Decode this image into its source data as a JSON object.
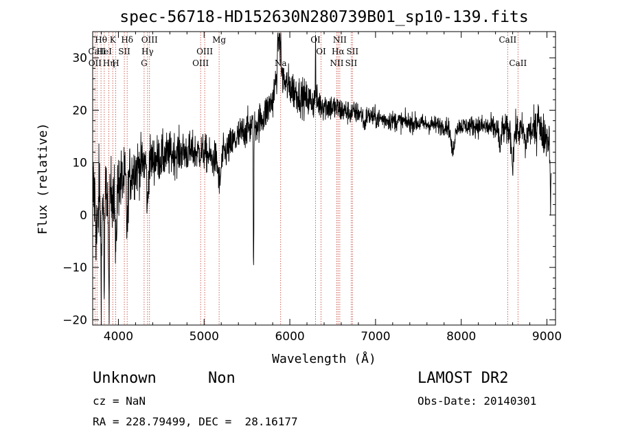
{
  "chart_data": {
    "type": "line",
    "title": "spec-56718-HD152630N280739B01_sp10-139.fits",
    "xlabel": "Wavelength (Å)",
    "ylabel": "Flux (relative)",
    "xlim": [
      3700,
      9100
    ],
    "ylim": [
      -21,
      35
    ],
    "x_ticks": [
      4000,
      5000,
      6000,
      7000,
      8000,
      9000
    ],
    "y_ticks": [
      -20,
      -10,
      0,
      10,
      20,
      30
    ],
    "x_tick_labels": [
      "4000",
      "5000",
      "6000",
      "7000",
      "8000",
      "9000"
    ],
    "y_tick_labels": [
      "−20",
      "−10",
      "0",
      "10",
      "20",
      "30"
    ],
    "grid": false,
    "series": [
      {
        "color": "#000000",
        "continuum": [
          [
            3700,
            4
          ],
          [
            3800,
            6
          ],
          [
            3900,
            4
          ],
          [
            4000,
            6
          ],
          [
            4100,
            7
          ],
          [
            4200,
            9
          ],
          [
            4300,
            10
          ],
          [
            4400,
            10.5
          ],
          [
            4500,
            11
          ],
          [
            4600,
            11.5
          ],
          [
            4700,
            12
          ],
          [
            4800,
            12
          ],
          [
            4900,
            12
          ],
          [
            5000,
            12
          ],
          [
            5100,
            10.5
          ],
          [
            5200,
            11
          ],
          [
            5300,
            13
          ],
          [
            5400,
            15
          ],
          [
            5500,
            16.5
          ],
          [
            5600,
            17
          ],
          [
            5700,
            19
          ],
          [
            5800,
            22
          ],
          [
            5850,
            27
          ],
          [
            5880,
            29
          ],
          [
            5900,
            27
          ],
          [
            5950,
            25
          ],
          [
            6000,
            24.5
          ],
          [
            6100,
            23
          ],
          [
            6200,
            22
          ],
          [
            6300,
            21.5
          ],
          [
            6400,
            21
          ],
          [
            6500,
            20.5
          ],
          [
            6600,
            20
          ],
          [
            6700,
            19.5
          ],
          [
            6800,
            19.5
          ],
          [
            6900,
            19
          ],
          [
            7000,
            18.5
          ],
          [
            7200,
            18
          ],
          [
            7500,
            17.5
          ],
          [
            7800,
            17
          ],
          [
            8000,
            17
          ],
          [
            8200,
            17
          ],
          [
            8400,
            16.5
          ],
          [
            8600,
            16
          ],
          [
            8800,
            16
          ],
          [
            8900,
            16
          ],
          [
            9000,
            15
          ],
          [
            9050,
            13
          ]
        ],
        "noise": [
          [
            3700,
            7
          ],
          [
            3900,
            5
          ],
          [
            4300,
            3.5
          ],
          [
            5000,
            2.5
          ],
          [
            5800,
            2.5
          ],
          [
            6000,
            2.8
          ],
          [
            6800,
            1.5
          ],
          [
            8000,
            1.2
          ],
          [
            8800,
            2.5
          ],
          [
            9050,
            3
          ]
        ],
        "features": [
          {
            "center": 3750,
            "width": 12,
            "depth": 10
          },
          {
            "center": 3800,
            "width": 8,
            "depth": 16
          },
          {
            "center": 3835,
            "width": 6,
            "depth": 20
          },
          {
            "center": 3889,
            "width": 6,
            "depth": 22
          },
          {
            "center": 3970,
            "width": 8,
            "depth": 14
          },
          {
            "center": 4102,
            "width": 8,
            "depth": 10
          },
          {
            "center": 4340,
            "width": 8,
            "depth": 9
          },
          {
            "center": 5180,
            "width": 15,
            "depth": 5
          },
          {
            "center": 5577,
            "width": 3,
            "depth": 30
          },
          {
            "center": 5870,
            "width": 10,
            "depth": -6
          },
          {
            "center": 5893,
            "width": 5,
            "depth": -5
          },
          {
            "center": 6300,
            "width": 3,
            "depth": -12
          },
          {
            "center": 6870,
            "width": 12,
            "depth": 2
          },
          {
            "center": 7900,
            "width": 20,
            "depth": 5
          },
          {
            "center": 8450,
            "width": 10,
            "depth": 4
          },
          {
            "center": 8600,
            "width": 12,
            "depth": 6
          },
          {
            "center": 8750,
            "width": 10,
            "depth": 3
          },
          {
            "center": 8900,
            "width": 8,
            "depth": -5
          },
          {
            "center": 9045,
            "width": 6,
            "depth": 10
          }
        ]
      }
    ],
    "lines": [
      {
        "x": 3797,
        "label": "Hθ",
        "row": 0
      },
      {
        "x": 3727,
        "label": "OII",
        "row": 2
      },
      {
        "x": 3750,
        "label": "CaII",
        "row": 1
      },
      {
        "x": 3835,
        "label": "HeI",
        "row": 1
      },
      {
        "x": 3889,
        "label": "Hη",
        "row": 2
      },
      {
        "x": 3934,
        "label": "K",
        "row": 0
      },
      {
        "x": 3968,
        "label": "H",
        "row": 2
      },
      {
        "x": 4069,
        "label": "SII",
        "row": 1
      },
      {
        "x": 4102,
        "label": "Hδ",
        "row": 0
      },
      {
        "x": 4300,
        "label": "G",
        "row": 2
      },
      {
        "x": 4340,
        "label": "Hγ",
        "row": 1
      },
      {
        "x": 4363,
        "label": "OIII",
        "row": 0
      },
      {
        "x": 4959,
        "label": "OIII",
        "row": 2
      },
      {
        "x": 5007,
        "label": "OIII",
        "row": 1
      },
      {
        "x": 5175,
        "label": "Mg",
        "row": 0
      },
      {
        "x": 5893,
        "label": "Na",
        "row": 2
      },
      {
        "x": 6300,
        "label": "OI",
        "row": 0
      },
      {
        "x": 6364,
        "label": "OI",
        "row": 1
      },
      {
        "x": 6548,
        "label": "NII",
        "row": 2
      },
      {
        "x": 6563,
        "label": "Hα",
        "row": 1
      },
      {
        "x": 6583,
        "label": "NII",
        "row": 0
      },
      {
        "x": 6716,
        "label": "SII",
        "row": 2
      },
      {
        "x": 6731,
        "label": "SII",
        "row": 1
      },
      {
        "x": 8542,
        "label": "CaII",
        "row": 0
      },
      {
        "x": 8662,
        "label": "CaII",
        "row": 2
      }
    ]
  },
  "info": {
    "class": "Unknown",
    "subclass": "Non",
    "survey": "LAMOST DR2",
    "cz": "cz = NaN",
    "obs_date": "Obs-Date: 20140301",
    "coords": "RA = 228.79499, DEC =  28.16177"
  }
}
